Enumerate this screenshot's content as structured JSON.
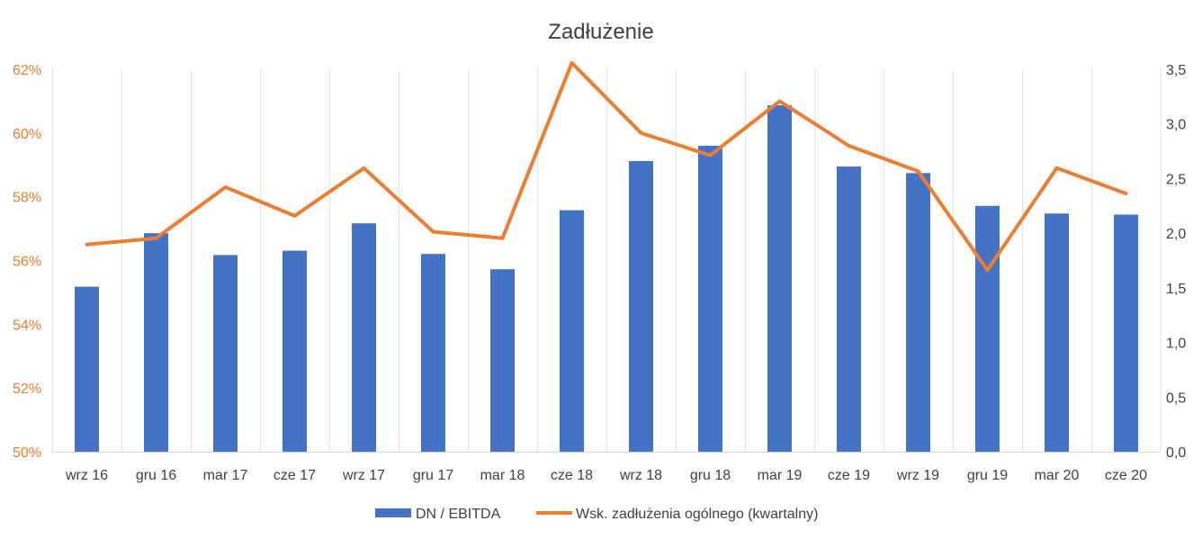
{
  "chart_data": {
    "type": "bar+line",
    "title": "Zadłużenie",
    "categories": [
      "wrz 16",
      "gru 16",
      "mar 17",
      "cze 17",
      "wrz 17",
      "gru 17",
      "mar 18",
      "cze 18",
      "wrz 18",
      "gru 18",
      "mar 19",
      "cze 19",
      "wrz 19",
      "gru 19",
      "mar 20",
      "cze 20"
    ],
    "series": [
      {
        "name": "DN / EBITDA",
        "type": "bar",
        "axis": "right",
        "color": "#4472C4",
        "values": [
          1.51,
          2.0,
          1.8,
          1.84,
          2.09,
          1.81,
          1.67,
          2.21,
          2.66,
          2.8,
          3.17,
          2.61,
          2.55,
          2.25,
          2.18,
          2.17
        ]
      },
      {
        "name": "Wsk. zadłużenia ogólnego (kwartalny)",
        "type": "line",
        "axis": "left",
        "color": "#ED7D31",
        "values": [
          56.5,
          56.7,
          58.3,
          57.4,
          58.9,
          56.9,
          56.7,
          62.2,
          60.0,
          59.3,
          61.0,
          59.6,
          58.8,
          55.7,
          58.9,
          58.1
        ]
      }
    ],
    "y_left": {
      "min": 50,
      "max": 62,
      "ticks": [
        "50%",
        "52%",
        "54%",
        "56%",
        "58%",
        "60%",
        "62%"
      ],
      "color": "#ED7D31"
    },
    "y_right": {
      "min": 0,
      "max": 3.5,
      "ticks": [
        "0,0",
        "0,5",
        "1,0",
        "1,5",
        "2,0",
        "2,5",
        "3,0",
        "3,5"
      ]
    },
    "grid": "vertical",
    "legend_position": "bottom"
  }
}
